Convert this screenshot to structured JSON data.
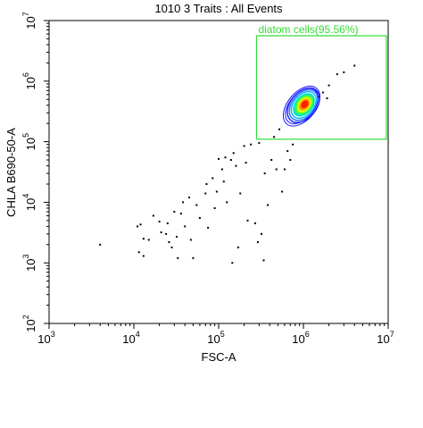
{
  "chart_data": {
    "type": "scatter",
    "title": "1010 3 Traits : All Events",
    "xlabel": "FSC-A",
    "ylabel": "CHLA B690-50-A",
    "xscale": "log",
    "yscale": "log",
    "xlim": [
      1000,
      10000000
    ],
    "ylim": [
      100,
      10000000
    ],
    "x_ticks": [
      {
        "base": "10",
        "exp": "3"
      },
      {
        "base": "10",
        "exp": "4"
      },
      {
        "base": "10",
        "exp": "5"
      },
      {
        "base": "10",
        "exp": "6"
      },
      {
        "base": "10",
        "exp": "7"
      }
    ],
    "y_ticks": [
      {
        "base": "10",
        "exp": "2"
      },
      {
        "base": "10",
        "exp": "3"
      },
      {
        "base": "10",
        "exp": "4"
      },
      {
        "base": "10",
        "exp": "5"
      },
      {
        "base": "10",
        "exp": "6"
      },
      {
        "base": "10",
        "exp": "7"
      }
    ],
    "grid": false,
    "gate": {
      "label": "diatom cells(95.56%)",
      "x_range": [
        280000,
        10000000
      ],
      "y_range": [
        110000,
        10000000
      ],
      "color": "#33dd33"
    },
    "density": {
      "center": [
        1000000,
        400000
      ],
      "contour_colors": [
        "#1a1aff",
        "#2a6cff",
        "#00b4ff",
        "#00e0c8",
        "#40ff40",
        "#e0ff00",
        "#ff9900",
        "#ff2200"
      ]
    },
    "points": [
      [
        4000,
        2000
      ],
      [
        11000,
        4000
      ],
      [
        12000,
        4300
      ],
      [
        13000,
        2500
      ],
      [
        15000,
        2400
      ],
      [
        11500,
        1500
      ],
      [
        13000,
        1300
      ],
      [
        17000,
        6000
      ],
      [
        20000,
        4800
      ],
      [
        21000,
        3200
      ],
      [
        25000,
        4500
      ],
      [
        24000,
        3000
      ],
      [
        26000,
        2200
      ],
      [
        28000,
        1800
      ],
      [
        30000,
        7000
      ],
      [
        32000,
        2700
      ],
      [
        33000,
        1200
      ],
      [
        38000,
        10000
      ],
      [
        36000,
        6500
      ],
      [
        40000,
        4000
      ],
      [
        45000,
        12000
      ],
      [
        47000,
        2400
      ],
      [
        50000,
        1200
      ],
      [
        55000,
        9000
      ],
      [
        60000,
        5500
      ],
      [
        70000,
        14000
      ],
      [
        72000,
        20000
      ],
      [
        75000,
        3800
      ],
      [
        85000,
        25000
      ],
      [
        90000,
        8000
      ],
      [
        95000,
        15000
      ],
      [
        100000,
        52000
      ],
      [
        110000,
        35000
      ],
      [
        115000,
        22000
      ],
      [
        120000,
        55000
      ],
      [
        125000,
        10000
      ],
      [
        140000,
        50000
      ],
      [
        145000,
        1000
      ],
      [
        150000,
        65000
      ],
      [
        160000,
        40000
      ],
      [
        170000,
        1800
      ],
      [
        180000,
        14000
      ],
      [
        200000,
        85000
      ],
      [
        210000,
        45000
      ],
      [
        220000,
        5000
      ],
      [
        240000,
        90000
      ],
      [
        270000,
        4500
      ],
      [
        290000,
        2200
      ],
      [
        300000,
        95000
      ],
      [
        320000,
        3000
      ],
      [
        340000,
        1100
      ],
      [
        350000,
        30000
      ],
      [
        380000,
        9000
      ],
      [
        420000,
        50000
      ],
      [
        450000,
        120000
      ],
      [
        480000,
        35000
      ],
      [
        520000,
        160000
      ],
      [
        560000,
        15000
      ],
      [
        600000,
        35000
      ],
      [
        650000,
        70000
      ],
      [
        700000,
        50000
      ],
      [
        750000,
        90000
      ],
      [
        1300000,
        400000
      ],
      [
        1500000,
        550000
      ],
      [
        1700000,
        650000
      ],
      [
        1900000,
        520000
      ],
      [
        2000000,
        850000
      ],
      [
        2500000,
        1300000
      ],
      [
        3000000,
        1400000
      ],
      [
        4000000,
        1800000
      ]
    ]
  }
}
